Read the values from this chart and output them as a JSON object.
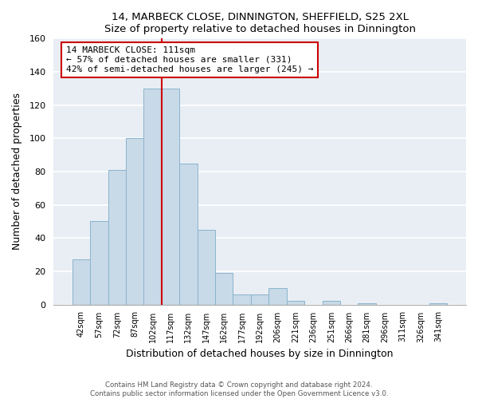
{
  "title1": "14, MARBECK CLOSE, DINNINGTON, SHEFFIELD, S25 2XL",
  "title2": "Size of property relative to detached houses in Dinnington",
  "xlabel": "Distribution of detached houses by size in Dinnington",
  "ylabel": "Number of detached properties",
  "bar_labels": [
    "42sqm",
    "57sqm",
    "72sqm",
    "87sqm",
    "102sqm",
    "117sqm",
    "132sqm",
    "147sqm",
    "162sqm",
    "177sqm",
    "192sqm",
    "206sqm",
    "221sqm",
    "236sqm",
    "251sqm",
    "266sqm",
    "281sqm",
    "296sqm",
    "311sqm",
    "326sqm",
    "341sqm"
  ],
  "bar_heights": [
    27,
    50,
    81,
    100,
    130,
    130,
    85,
    45,
    19,
    6,
    6,
    10,
    2,
    0,
    2,
    0,
    1,
    0,
    0,
    0,
    1
  ],
  "bar_color": "#c8d9e8",
  "bar_edge_color": "#8ab4cc",
  "vline_color": "#cc0000",
  "ylim": [
    0,
    160
  ],
  "yticks": [
    0,
    20,
    40,
    60,
    80,
    100,
    120,
    140,
    160
  ],
  "annotation_title": "14 MARBECK CLOSE: 111sqm",
  "annotation_line1": "← 57% of detached houses are smaller (331)",
  "annotation_line2": "42% of semi-detached houses are larger (245) →",
  "annotation_box_color": "#ffffff",
  "annotation_box_edge": "#cc0000",
  "footer1": "Contains HM Land Registry data © Crown copyright and database right 2024.",
  "footer2": "Contains public sector information licensed under the Open Government Licence v3.0.",
  "bg_color": "#e8eef4",
  "grid_color": "#ffffff"
}
